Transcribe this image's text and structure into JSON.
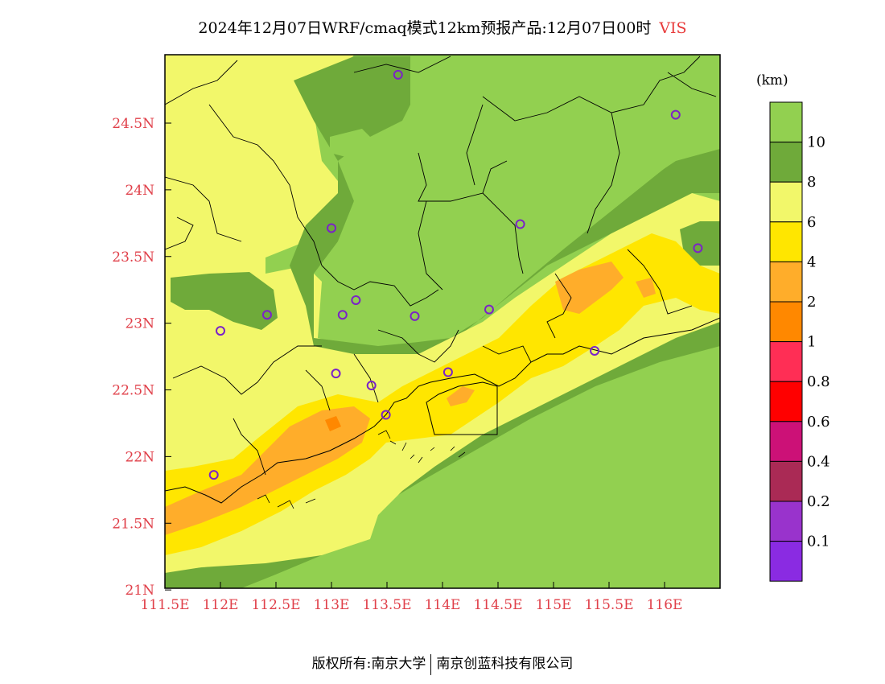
{
  "title": {
    "main": "2024年12月07日WRF/cmaq模式12km预报产品:12月07日00时",
    "variable": "VIS"
  },
  "axes": {
    "x_ticks": [
      "111.5E",
      "112E",
      "112.5E",
      "113E",
      "113.5E",
      "114E",
      "114.5E",
      "115E",
      "115.5E",
      "116E"
    ],
    "y_ticks": [
      "24.5N",
      "24N",
      "23.5N",
      "23N",
      "22.5N",
      "22N",
      "21.5N",
      "21N"
    ]
  },
  "legend": {
    "unit": "(km)",
    "levels": [
      {
        "label": "10",
        "color": "#92d050"
      },
      {
        "label": "8",
        "color": "#6faa3a"
      },
      {
        "label": "6",
        "color": "#f2f76a"
      },
      {
        "label": "4",
        "color": "#ffe600"
      },
      {
        "label": "2",
        "color": "#ffad2a"
      },
      {
        "label": "1",
        "color": "#ff8800"
      },
      {
        "label": "0.8",
        "color": "#ff2e55"
      },
      {
        "label": "0.6",
        "color": "#ff0000"
      },
      {
        "label": "0.4",
        "color": "#cc1177"
      },
      {
        "label": "0.2",
        "color": "#aa2a55"
      },
      {
        "label": "0.1",
        "color": "#9933cc"
      },
      {
        "label": "",
        "color": "#8a2be2"
      }
    ]
  },
  "stations": [
    {
      "lon": 113.6,
      "lat": 24.85
    },
    {
      "lon": 116.1,
      "lat": 24.55
    },
    {
      "lon": 113.0,
      "lat": 23.7
    },
    {
      "lon": 114.7,
      "lat": 23.73
    },
    {
      "lon": 116.3,
      "lat": 23.55
    },
    {
      "lon": 112.42,
      "lat": 23.05
    },
    {
      "lon": 112.0,
      "lat": 22.93
    },
    {
      "lon": 113.1,
      "lat": 23.05
    },
    {
      "lon": 113.22,
      "lat": 23.16
    },
    {
      "lon": 113.75,
      "lat": 23.04
    },
    {
      "lon": 114.42,
      "lat": 23.09
    },
    {
      "lon": 115.37,
      "lat": 22.78
    },
    {
      "lon": 113.04,
      "lat": 22.61
    },
    {
      "lon": 113.36,
      "lat": 22.52
    },
    {
      "lon": 114.05,
      "lat": 22.62
    },
    {
      "lon": 113.49,
      "lat": 22.3
    },
    {
      "lon": 111.94,
      "lat": 21.85
    }
  ],
  "footer": {
    "left": "版权所有:南京大学",
    "right": "南京创蓝科技有限公司"
  }
}
